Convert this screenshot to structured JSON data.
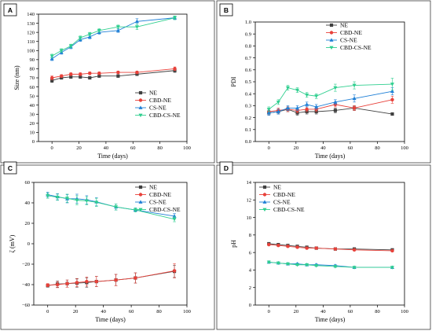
{
  "colors": {
    "NE": "#404040",
    "CBD-NE": "#e8413a",
    "CS-NE": "#1e7fd6",
    "CBD-CS-NE": "#2fcf8f"
  },
  "chart_data": [
    {
      "panel": "A",
      "type": "line",
      "xlabel": "Time (days)",
      "ylabel": "Size (nm)",
      "xlim": [
        -10,
        100
      ],
      "ylim": [
        0,
        140
      ],
      "xticks": [
        0,
        20,
        40,
        60,
        80,
        100
      ],
      "yticks": [
        0,
        10,
        20,
        30,
        40,
        50,
        60,
        70,
        80,
        90,
        100,
        110,
        120,
        130,
        140
      ],
      "legend_position": "lower-right",
      "x": [
        0,
        7,
        14,
        21,
        28,
        35,
        49,
        63,
        91
      ],
      "series": [
        {
          "name": "NE",
          "marker": "square",
          "values": [
            67,
            70,
            71,
            71,
            70,
            72,
            72,
            74,
            78
          ],
          "err": [
            2,
            1.5,
            1.5,
            1.5,
            1.5,
            1.5,
            1.5,
            1.5,
            2
          ]
        },
        {
          "name": "CBD-NE",
          "marker": "circle",
          "values": [
            70,
            72,
            74,
            74,
            75,
            75,
            76,
            76,
            80
          ],
          "err": [
            2,
            1.5,
            1.5,
            1.5,
            1.5,
            1.5,
            1.5,
            1.5,
            2
          ]
        },
        {
          "name": "CS-NE",
          "marker": "triangle-up",
          "values": [
            91,
            98,
            104,
            112,
            115,
            120,
            122,
            132,
            136
          ],
          "err": [
            2,
            2,
            2,
            2,
            2,
            2,
            2,
            3,
            2
          ]
        },
        {
          "name": "CBD-CS-NE",
          "marker": "triangle-down",
          "values": [
            94,
            100,
            105,
            114,
            118,
            122,
            126,
            126,
            136
          ],
          "err": [
            2,
            2,
            2,
            2,
            2,
            2,
            2,
            3,
            2
          ]
        }
      ]
    },
    {
      "panel": "B",
      "type": "line",
      "xlabel": "Time (days)",
      "ylabel": "PDI",
      "xlim": [
        -10,
        100
      ],
      "ylim": [
        0.0,
        1.0
      ],
      "xticks": [
        0,
        20,
        40,
        60,
        80,
        100
      ],
      "yticks": [
        0.0,
        0.1,
        0.2,
        0.3,
        0.4,
        0.5,
        0.6,
        0.7,
        0.8,
        0.9,
        1.0
      ],
      "legend_position": "top-right",
      "x": [
        0,
        7,
        14,
        21,
        28,
        35,
        49,
        63,
        91
      ],
      "series": [
        {
          "name": "NE",
          "marker": "square",
          "values": [
            0.24,
            0.25,
            0.27,
            0.24,
            0.25,
            0.25,
            0.26,
            0.28,
            0.23
          ],
          "err": [
            0.02,
            0.02,
            0.02,
            0.02,
            0.02,
            0.02,
            0.02,
            0.02,
            0.01
          ]
        },
        {
          "name": "CBD-NE",
          "marker": "circle",
          "values": [
            0.25,
            0.26,
            0.27,
            0.26,
            0.27,
            0.27,
            0.31,
            0.28,
            0.35
          ],
          "err": [
            0.02,
            0.02,
            0.02,
            0.02,
            0.02,
            0.02,
            0.02,
            0.02,
            0.03
          ]
        },
        {
          "name": "CS-NE",
          "marker": "triangle-up",
          "values": [
            0.24,
            0.25,
            0.28,
            0.28,
            0.31,
            0.29,
            0.33,
            0.36,
            0.42
          ],
          "err": [
            0.02,
            0.02,
            0.02,
            0.02,
            0.02,
            0.02,
            0.02,
            0.03,
            0.03
          ]
        },
        {
          "name": "CBD-CS-NE",
          "marker": "triangle-down",
          "values": [
            0.27,
            0.33,
            0.45,
            0.43,
            0.39,
            0.38,
            0.45,
            0.47,
            0.48
          ],
          "err": [
            0.02,
            0.02,
            0.02,
            0.02,
            0.02,
            0.02,
            0.03,
            0.03,
            0.05
          ]
        }
      ]
    },
    {
      "panel": "C",
      "type": "line",
      "xlabel": "Time (days)",
      "ylabel": "ζ (mV)",
      "xlim": [
        -10,
        100
      ],
      "ylim": [
        -60,
        60
      ],
      "xticks": [
        0,
        20,
        40,
        60,
        80,
        100
      ],
      "yticks": [
        -60,
        -40,
        -20,
        0,
        20,
        40,
        60
      ],
      "legend_position": "top-right",
      "x": [
        0,
        7,
        14,
        21,
        28,
        35,
        49,
        63,
        91
      ],
      "series": [
        {
          "name": "NE",
          "marker": "square",
          "values": [
            -41,
            -39.5,
            -39,
            -38.5,
            -38,
            -37,
            -35.5,
            -33.5,
            -27
          ],
          "err": [
            1.5,
            3,
            3.5,
            4,
            4.5,
            5,
            5.5,
            5,
            6
          ]
        },
        {
          "name": "CBD-NE",
          "marker": "circle",
          "values": [
            -40.5,
            -40,
            -39,
            -38,
            -37,
            -37,
            -35.5,
            -33.5,
            -26.5
          ],
          "err": [
            1.5,
            3,
            3.5,
            4,
            4.5,
            5,
            5.5,
            5,
            7
          ]
        },
        {
          "name": "CS-NE",
          "marker": "triangle-up",
          "values": [
            48,
            46,
            44,
            44,
            43,
            41,
            36,
            33,
            27
          ],
          "err": [
            2.5,
            3,
            4,
            4.5,
            4,
            4,
            3,
            2,
            2.5
          ]
        },
        {
          "name": "CBD-CS-NE",
          "marker": "triangle-down",
          "values": [
            47,
            45.5,
            44.5,
            42.5,
            42,
            40.5,
            36,
            33,
            24
          ],
          "err": [
            2.5,
            3,
            4,
            4.5,
            4,
            4,
            3,
            2,
            2.5
          ]
        }
      ]
    },
    {
      "panel": "D",
      "type": "line",
      "xlabel": "Time (days)",
      "ylabel": "pH",
      "xlim": [
        -10,
        100
      ],
      "ylim": [
        0,
        14
      ],
      "xticks": [
        0,
        20,
        40,
        60,
        80,
        100
      ],
      "yticks": [
        0,
        2,
        4,
        6,
        8,
        10,
        12,
        14
      ],
      "legend_position": "top-left",
      "x": [
        0,
        7,
        14,
        21,
        28,
        35,
        49,
        63,
        91
      ],
      "series": [
        {
          "name": "NE",
          "marker": "square",
          "values": [
            7.0,
            6.9,
            6.8,
            6.7,
            6.6,
            6.5,
            6.4,
            6.4,
            6.3
          ],
          "err": [
            0.1,
            0.1,
            0.1,
            0.1,
            0.1,
            0.1,
            0.1,
            0.1,
            0.1
          ]
        },
        {
          "name": "CBD-NE",
          "marker": "circle",
          "values": [
            6.9,
            6.8,
            6.7,
            6.6,
            6.5,
            6.5,
            6.4,
            6.3,
            6.2
          ],
          "err": [
            0.1,
            0.1,
            0.1,
            0.1,
            0.1,
            0.1,
            0.1,
            0.1,
            0.1
          ]
        },
        {
          "name": "CS-NE",
          "marker": "triangle-up",
          "values": [
            4.9,
            4.8,
            4.7,
            4.7,
            4.6,
            4.6,
            4.5,
            4.3,
            4.3
          ],
          "err": [
            0.1,
            0.1,
            0.1,
            0.1,
            0.1,
            0.1,
            0.1,
            0.1,
            0.1
          ]
        },
        {
          "name": "CBD-CS-NE",
          "marker": "triangle-down",
          "values": [
            4.9,
            4.8,
            4.7,
            4.6,
            4.6,
            4.5,
            4.4,
            4.3,
            4.3
          ],
          "err": [
            0.1,
            0.1,
            0.1,
            0.1,
            0.1,
            0.1,
            0.1,
            0.1,
            0.1
          ]
        }
      ]
    }
  ]
}
